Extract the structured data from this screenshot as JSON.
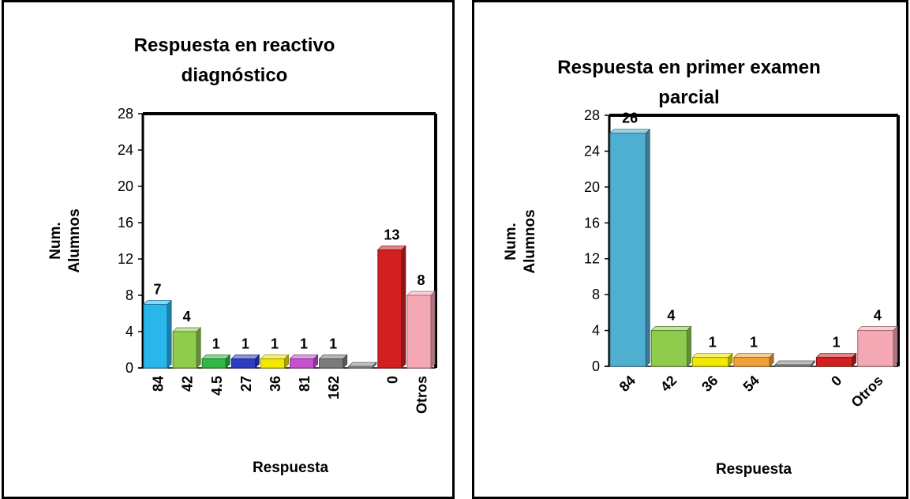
{
  "chart_data": [
    {
      "type": "bar",
      "title": [
        "Respuesta en reactivo",
        "diagnóstico"
      ],
      "ylabel": [
        "Num.",
        "Alumnos"
      ],
      "xlabel": "Respuesta",
      "ylim": [
        0,
        28
      ],
      "yticks": [
        0,
        4,
        8,
        12,
        16,
        20,
        24,
        28
      ],
      "grid": false,
      "bars_3d": true,
      "categories": [
        "84",
        "42",
        "4.5",
        "27",
        "36",
        "81",
        "162",
        "",
        "0",
        "Otros"
      ],
      "values": [
        7,
        4,
        1,
        1,
        1,
        1,
        1,
        0,
        13,
        8
      ],
      "data_labels": [
        "7",
        "4",
        "1",
        "1",
        "1",
        "1",
        "1",
        "",
        "13",
        "8"
      ],
      "colors": [
        "#29B6EC",
        "#8FCB4D",
        "#2FB845",
        "#2E3EC2",
        "#F2E800",
        "#C652D0",
        "#7B7B7B",
        "#8A8A8A",
        "#D11F22",
        "#F4A8B4"
      ],
      "x_tick_rotation": -90
    },
    {
      "type": "bar",
      "title": [
        "Respuesta en primer examen",
        "parcial"
      ],
      "ylabel": [
        "Num.",
        "Alumnos"
      ],
      "xlabel": "Respuesta",
      "ylim": [
        0,
        28
      ],
      "yticks": [
        0,
        4,
        8,
        12,
        16,
        20,
        24,
        28
      ],
      "grid": false,
      "bars_3d": true,
      "categories": [
        "84",
        "42",
        "36",
        "54",
        "",
        "0",
        "Otros"
      ],
      "values": [
        26,
        4,
        1,
        1,
        0,
        1,
        4
      ],
      "data_labels": [
        "26",
        "4",
        "1",
        "1",
        "",
        "1",
        "4"
      ],
      "colors": [
        "#4FAFD1",
        "#8FCB4D",
        "#F2E800",
        "#F2A13A",
        "#8A8A8A",
        "#D11F22",
        "#F4A8B4"
      ],
      "x_tick_rotation": -45
    }
  ]
}
